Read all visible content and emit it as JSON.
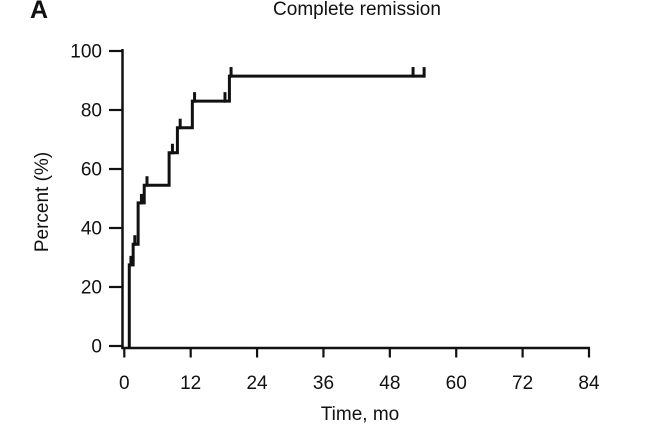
{
  "figure": {
    "panel_label": "A",
    "background": "#ffffff",
    "text_color": "#111111"
  },
  "chart_data": {
    "type": "line",
    "subtype": "kaplan-meier-step-curve",
    "title": "Complete remission",
    "xlabel": "Time, mo",
    "ylabel": "Percent (%)",
    "xlim": [
      0,
      84
    ],
    "ylim": [
      0,
      100
    ],
    "x_ticks": [
      0,
      12,
      24,
      36,
      48,
      60,
      72,
      84
    ],
    "y_ticks": [
      0,
      20,
      40,
      60,
      80,
      100
    ],
    "grid": false,
    "legend": null,
    "line_color": "#111111",
    "series": [
      {
        "name": "Complete remission",
        "steps_time_percent": [
          [
            0.9,
            27.5
          ],
          [
            1.6,
            34.5
          ],
          [
            2.5,
            48.5
          ],
          [
            3.6,
            54.5
          ],
          [
            8.1,
            65.5
          ],
          [
            9.6,
            74
          ],
          [
            12.3,
            83
          ],
          [
            19.0,
            91.5
          ]
        ],
        "end_time": 54.4,
        "final_percent": 91.5
      }
    ],
    "censor_marks_time_percent": [
      [
        1.2,
        27.5
      ],
      [
        1.9,
        34.5
      ],
      [
        3.1,
        48.5
      ],
      [
        4.1,
        54.5
      ],
      [
        8.7,
        65.5
      ],
      [
        10.1,
        74
      ],
      [
        12.7,
        83
      ],
      [
        18.2,
        83
      ],
      [
        19.3,
        91.5
      ],
      [
        52.2,
        91.5
      ],
      [
        54.2,
        91.5
      ]
    ]
  }
}
